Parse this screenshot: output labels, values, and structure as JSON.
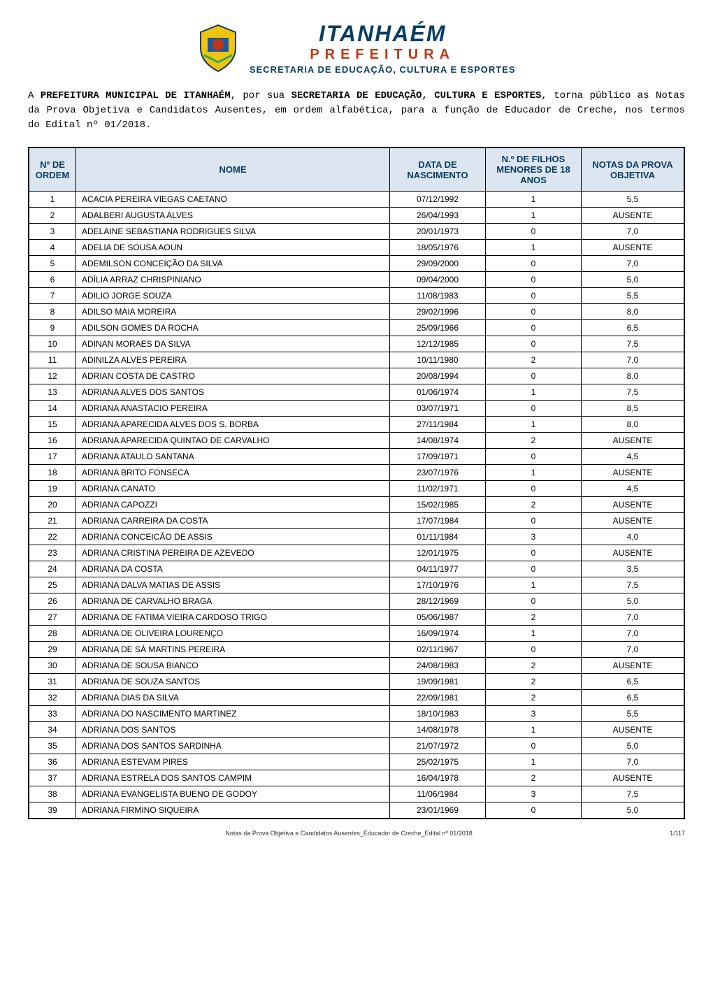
{
  "logo": {
    "city": "ITANHAÉM",
    "subtitle": "PREFEITURA",
    "department": "SECRETARIA DE EDUCAÇÃO, CULTURA E ESPORTES"
  },
  "intro": {
    "part1": "A ",
    "bold1": "PREFEITURA MUNICIPAL DE ITANHAÉM",
    "part2": ", por sua ",
    "bold2": "SECRETARIA DE EDUCAÇÃO, CULTURA E ESPORTES",
    "part3": ", torna público as Notas da Prova Objetiva e Candidatos Ausentes, em ordem alfabética, para a função de Educador de Creche, nos termos do Edital nº 01/2018."
  },
  "table": {
    "headers": {
      "ordem": "Nº DE ORDEM",
      "nome": "NOME",
      "data": "DATA DE NASCIMENTO",
      "filhos": "N.º DE FILHOS MENORES DE 18 ANOS",
      "notas": "NOTAS DA PROVA OBJETIVA"
    },
    "header_bg": "#dce6f1",
    "header_color": "#0a3d62",
    "border_color": "#000000",
    "rows": [
      {
        "n": "1",
        "nome": "ACACIA PEREIRA VIEGAS CAETANO",
        "data": "07/12/1992",
        "filhos": "1",
        "nota": "5,5"
      },
      {
        "n": "2",
        "nome": "ADALBERI AUGUSTA ALVES",
        "data": "26/04/1993",
        "filhos": "1",
        "nota": "AUSENTE"
      },
      {
        "n": "3",
        "nome": "ADELAINE SEBASTIANA RODRIGUES SILVA",
        "data": "20/01/1973",
        "filhos": "0",
        "nota": "7,0"
      },
      {
        "n": "4",
        "nome": "ADELIA DE SOUSA AOUN",
        "data": "18/05/1976",
        "filhos": "1",
        "nota": "AUSENTE"
      },
      {
        "n": "5",
        "nome": "ADEMILSON CONCEIÇÃO DA SILVA",
        "data": "29/09/2000",
        "filhos": "0",
        "nota": "7,0"
      },
      {
        "n": "6",
        "nome": "ADÍLIA ARRAZ CHRISPINIANO",
        "data": "09/04/2000",
        "filhos": "0",
        "nota": "5,0"
      },
      {
        "n": "7",
        "nome": "ADILIO JORGE SOUZA",
        "data": "11/08/1983",
        "filhos": "0",
        "nota": "5,5"
      },
      {
        "n": "8",
        "nome": "ADILSO MAIA MOREIRA",
        "data": "29/02/1996",
        "filhos": "0",
        "nota": "8,0"
      },
      {
        "n": "9",
        "nome": "ADILSON GOMES DA ROCHA",
        "data": "25/09/1966",
        "filhos": "0",
        "nota": "6,5"
      },
      {
        "n": "10",
        "nome": "ADINAN MORAES DA SILVA",
        "data": "12/12/1985",
        "filhos": "0",
        "nota": "7,5"
      },
      {
        "n": "11",
        "nome": "ADINILZA ALVES PEREIRA",
        "data": "10/11/1980",
        "filhos": "2",
        "nota": "7,0"
      },
      {
        "n": "12",
        "nome": "ADRIAN COSTA DE CASTRO",
        "data": "20/08/1994",
        "filhos": "0",
        "nota": "8,0"
      },
      {
        "n": "13",
        "nome": "ADRIANA ALVES DOS SANTOS",
        "data": "01/06/1974",
        "filhos": "1",
        "nota": "7,5"
      },
      {
        "n": "14",
        "nome": "ADRIANA ANASTACIO PEREIRA",
        "data": "03/07/1971",
        "filhos": "0",
        "nota": "8,5"
      },
      {
        "n": "15",
        "nome": "ADRIANA APARECIDA ALVES DOS S. BORBA",
        "data": "27/11/1984",
        "filhos": "1",
        "nota": "8,0"
      },
      {
        "n": "16",
        "nome": "ADRIANA APARECIDA QUINTAO DE CARVALHO",
        "data": "14/08/1974",
        "filhos": "2",
        "nota": "AUSENTE"
      },
      {
        "n": "17",
        "nome": "ADRIANA ATAULO SANTANA",
        "data": "17/09/1971",
        "filhos": "0",
        "nota": "4,5"
      },
      {
        "n": "18",
        "nome": "ADRIANA BRITO FONSECA",
        "data": "23/07/1976",
        "filhos": "1",
        "nota": "AUSENTE"
      },
      {
        "n": "19",
        "nome": "ADRIANA CANATO",
        "data": "11/02/1971",
        "filhos": "0",
        "nota": "4,5"
      },
      {
        "n": "20",
        "nome": "ADRIANA CAPOZZI",
        "data": "15/02/1985",
        "filhos": "2",
        "nota": "AUSENTE"
      },
      {
        "n": "21",
        "nome": "ADRIANA CARREIRA DA COSTA",
        "data": "17/07/1984",
        "filhos": "0",
        "nota": "AUSENTE"
      },
      {
        "n": "22",
        "nome": "ADRIANA CONCEICÃO DE ASSIS",
        "data": "01/11/1984",
        "filhos": "3",
        "nota": "4,0"
      },
      {
        "n": "23",
        "nome": "ADRIANA CRISTINA PEREIRA DE AZEVEDO",
        "data": "12/01/1975",
        "filhos": "0",
        "nota": "AUSENTE"
      },
      {
        "n": "24",
        "nome": "ADRIANA DA COSTA",
        "data": "04/11/1977",
        "filhos": "0",
        "nota": "3,5"
      },
      {
        "n": "25",
        "nome": "ADRIANA DALVA MATIAS DE ASSIS",
        "data": "17/10/1976",
        "filhos": "1",
        "nota": "7,5"
      },
      {
        "n": "26",
        "nome": "ADRIANA DE CARVALHO BRAGA",
        "data": "28/12/1969",
        "filhos": "0",
        "nota": "5,0"
      },
      {
        "n": "27",
        "nome": "ADRIANA DE FATIMA VIEIRA CARDOSO TRIGO",
        "data": "05/06/1987",
        "filhos": "2",
        "nota": "7,0"
      },
      {
        "n": "28",
        "nome": "ADRIANA DE OLIVEIRA LOURENÇO",
        "data": "16/09/1974",
        "filhos": "1",
        "nota": "7,0"
      },
      {
        "n": "29",
        "nome": "ADRIANA DE SÁ MARTINS PEREIRA",
        "data": "02/11/1967",
        "filhos": "0",
        "nota": "7,0"
      },
      {
        "n": "30",
        "nome": "ADRIANA DE SOUSA BIANCO",
        "data": "24/08/1983",
        "filhos": "2",
        "nota": "AUSENTE"
      },
      {
        "n": "31",
        "nome": "ADRIANA DE SOUZA SANTOS",
        "data": "19/09/1981",
        "filhos": "2",
        "nota": "6,5"
      },
      {
        "n": "32",
        "nome": "ADRIANA DIAS DA SILVA",
        "data": "22/09/1981",
        "filhos": "2",
        "nota": "6,5"
      },
      {
        "n": "33",
        "nome": "ADRIANA DO NASCIMENTO MARTINEZ",
        "data": "18/10/1983",
        "filhos": "3",
        "nota": "5,5"
      },
      {
        "n": "34",
        "nome": "ADRIANA DOS SANTOS",
        "data": "14/08/1978",
        "filhos": "1",
        "nota": "AUSENTE"
      },
      {
        "n": "35",
        "nome": "ADRIANA DOS SANTOS SARDINHA",
        "data": "21/07/1972",
        "filhos": "0",
        "nota": "5,0"
      },
      {
        "n": "36",
        "nome": "ADRIANA ESTEVAM PIRES",
        "data": "25/02/1975",
        "filhos": "1",
        "nota": "7,0"
      },
      {
        "n": "37",
        "nome": "ADRIANA ESTRELA DOS SANTOS CAMPIM",
        "data": "16/04/1978",
        "filhos": "2",
        "nota": "AUSENTE"
      },
      {
        "n": "38",
        "nome": "ADRIANA EVANGELISTA BUENO DE GODOY",
        "data": "11/06/1984",
        "filhos": "3",
        "nota": "7,5"
      },
      {
        "n": "39",
        "nome": "ADRIANA FIRMINO SIQUEIRA",
        "data": "23/01/1969",
        "filhos": "0",
        "nota": "5,0"
      }
    ]
  },
  "footer": {
    "text": "Notas da Prova Objetiva e Candidatos Ausentes_Educador de Creche_Edital nº 01/2018",
    "page": "1/117"
  }
}
